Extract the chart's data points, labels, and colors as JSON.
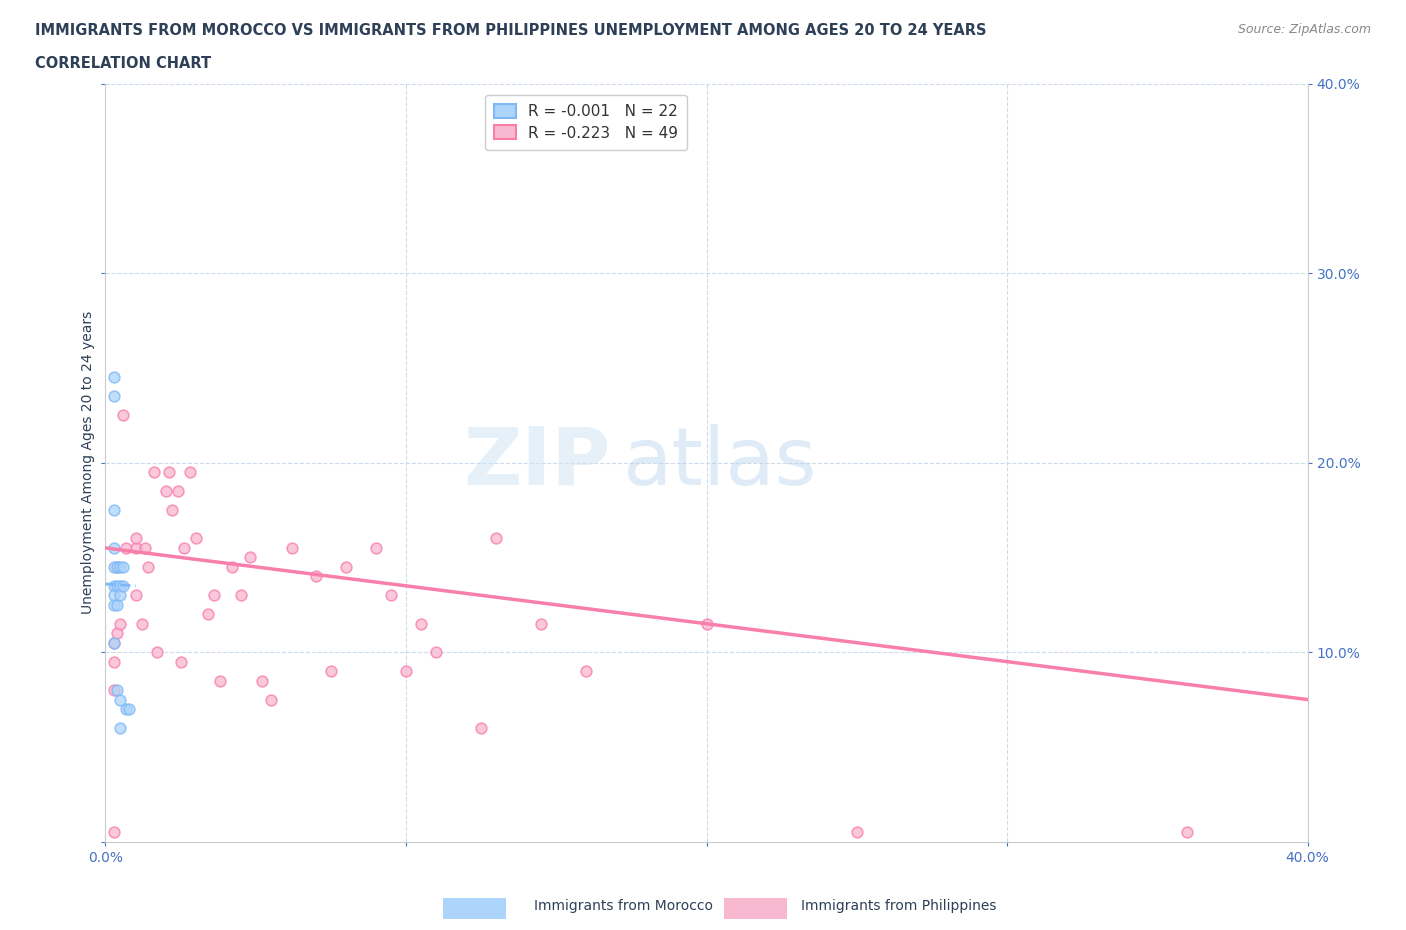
{
  "title_line1": "IMMIGRANTS FROM MOROCCO VS IMMIGRANTS FROM PHILIPPINES UNEMPLOYMENT AMONG AGES 20 TO 24 YEARS",
  "title_line2": "CORRELATION CHART",
  "title_color": "#2E4057",
  "source_text": "Source: ZipAtlas.com",
  "ylabel": "Unemployment Among Ages 20 to 24 years",
  "xlim": [
    0.0,
    0.4
  ],
  "ylim": [
    0.0,
    0.4
  ],
  "xticks": [
    0.0,
    0.1,
    0.2,
    0.3,
    0.4
  ],
  "yticks": [
    0.0,
    0.1,
    0.2,
    0.3,
    0.4
  ],
  "xtick_labels": [
    "0.0%",
    "",
    "",
    "",
    "40.0%"
  ],
  "ytick_labels": [
    "",
    "",
    "",
    "",
    ""
  ],
  "right_ytick_labels": [
    "10.0%",
    "20.0%",
    "30.0%",
    "40.0%"
  ],
  "right_ytick_vals": [
    0.1,
    0.2,
    0.3,
    0.4
  ],
  "bottom_tick_labels_left": "0.0%",
  "bottom_tick_labels_right": "40.0%",
  "watermark_zip": "ZIP",
  "watermark_atlas": "atlas",
  "legend_r1": "R = -0.001",
  "legend_n1": "N = 22",
  "legend_r2": "R = -0.223",
  "legend_n2": "N = 49",
  "morocco_color": "#7EB8F7",
  "morocco_face": "#ADD4FA",
  "philippines_color": "#F87EAB",
  "philippines_face": "#F8B8D0",
  "morocco_x": [
    0.003,
    0.003,
    0.003,
    0.003,
    0.003,
    0.003,
    0.003,
    0.003,
    0.003,
    0.004,
    0.004,
    0.004,
    0.004,
    0.005,
    0.005,
    0.005,
    0.005,
    0.005,
    0.006,
    0.006,
    0.007,
    0.008
  ],
  "morocco_y": [
    0.245,
    0.235,
    0.175,
    0.155,
    0.145,
    0.135,
    0.13,
    0.125,
    0.105,
    0.145,
    0.135,
    0.125,
    0.08,
    0.145,
    0.135,
    0.13,
    0.075,
    0.06,
    0.145,
    0.135,
    0.07,
    0.07
  ],
  "philippines_x": [
    0.003,
    0.003,
    0.003,
    0.003,
    0.004,
    0.004,
    0.005,
    0.006,
    0.007,
    0.01,
    0.01,
    0.01,
    0.012,
    0.013,
    0.014,
    0.016,
    0.017,
    0.02,
    0.021,
    0.022,
    0.024,
    0.025,
    0.026,
    0.028,
    0.03,
    0.034,
    0.036,
    0.038,
    0.042,
    0.045,
    0.048,
    0.052,
    0.055,
    0.062,
    0.07,
    0.075,
    0.08,
    0.09,
    0.095,
    0.1,
    0.105,
    0.11,
    0.125,
    0.13,
    0.145,
    0.16,
    0.2,
    0.25,
    0.36
  ],
  "philippines_y": [
    0.105,
    0.095,
    0.08,
    0.005,
    0.145,
    0.11,
    0.115,
    0.225,
    0.155,
    0.13,
    0.155,
    0.16,
    0.115,
    0.155,
    0.145,
    0.195,
    0.1,
    0.185,
    0.195,
    0.175,
    0.185,
    0.095,
    0.155,
    0.195,
    0.16,
    0.12,
    0.13,
    0.085,
    0.145,
    0.13,
    0.15,
    0.085,
    0.075,
    0.155,
    0.14,
    0.09,
    0.145,
    0.155,
    0.13,
    0.09,
    0.115,
    0.1,
    0.06,
    0.16,
    0.115,
    0.09,
    0.115,
    0.005,
    0.005
  ],
  "morocco_line_x": [
    0.0,
    0.01
  ],
  "morocco_line_y": [
    0.136,
    0.135
  ],
  "philippines_line_x": [
    0.0,
    0.4
  ],
  "philippines_line_y": [
    0.155,
    0.075
  ],
  "background_color": "#FFFFFF",
  "grid_color": "#C8D8E8",
  "axis_color": "#4472C4",
  "scatter_size": 60,
  "scatter_alpha": 0.75,
  "scatter_linewidth": 1.2
}
